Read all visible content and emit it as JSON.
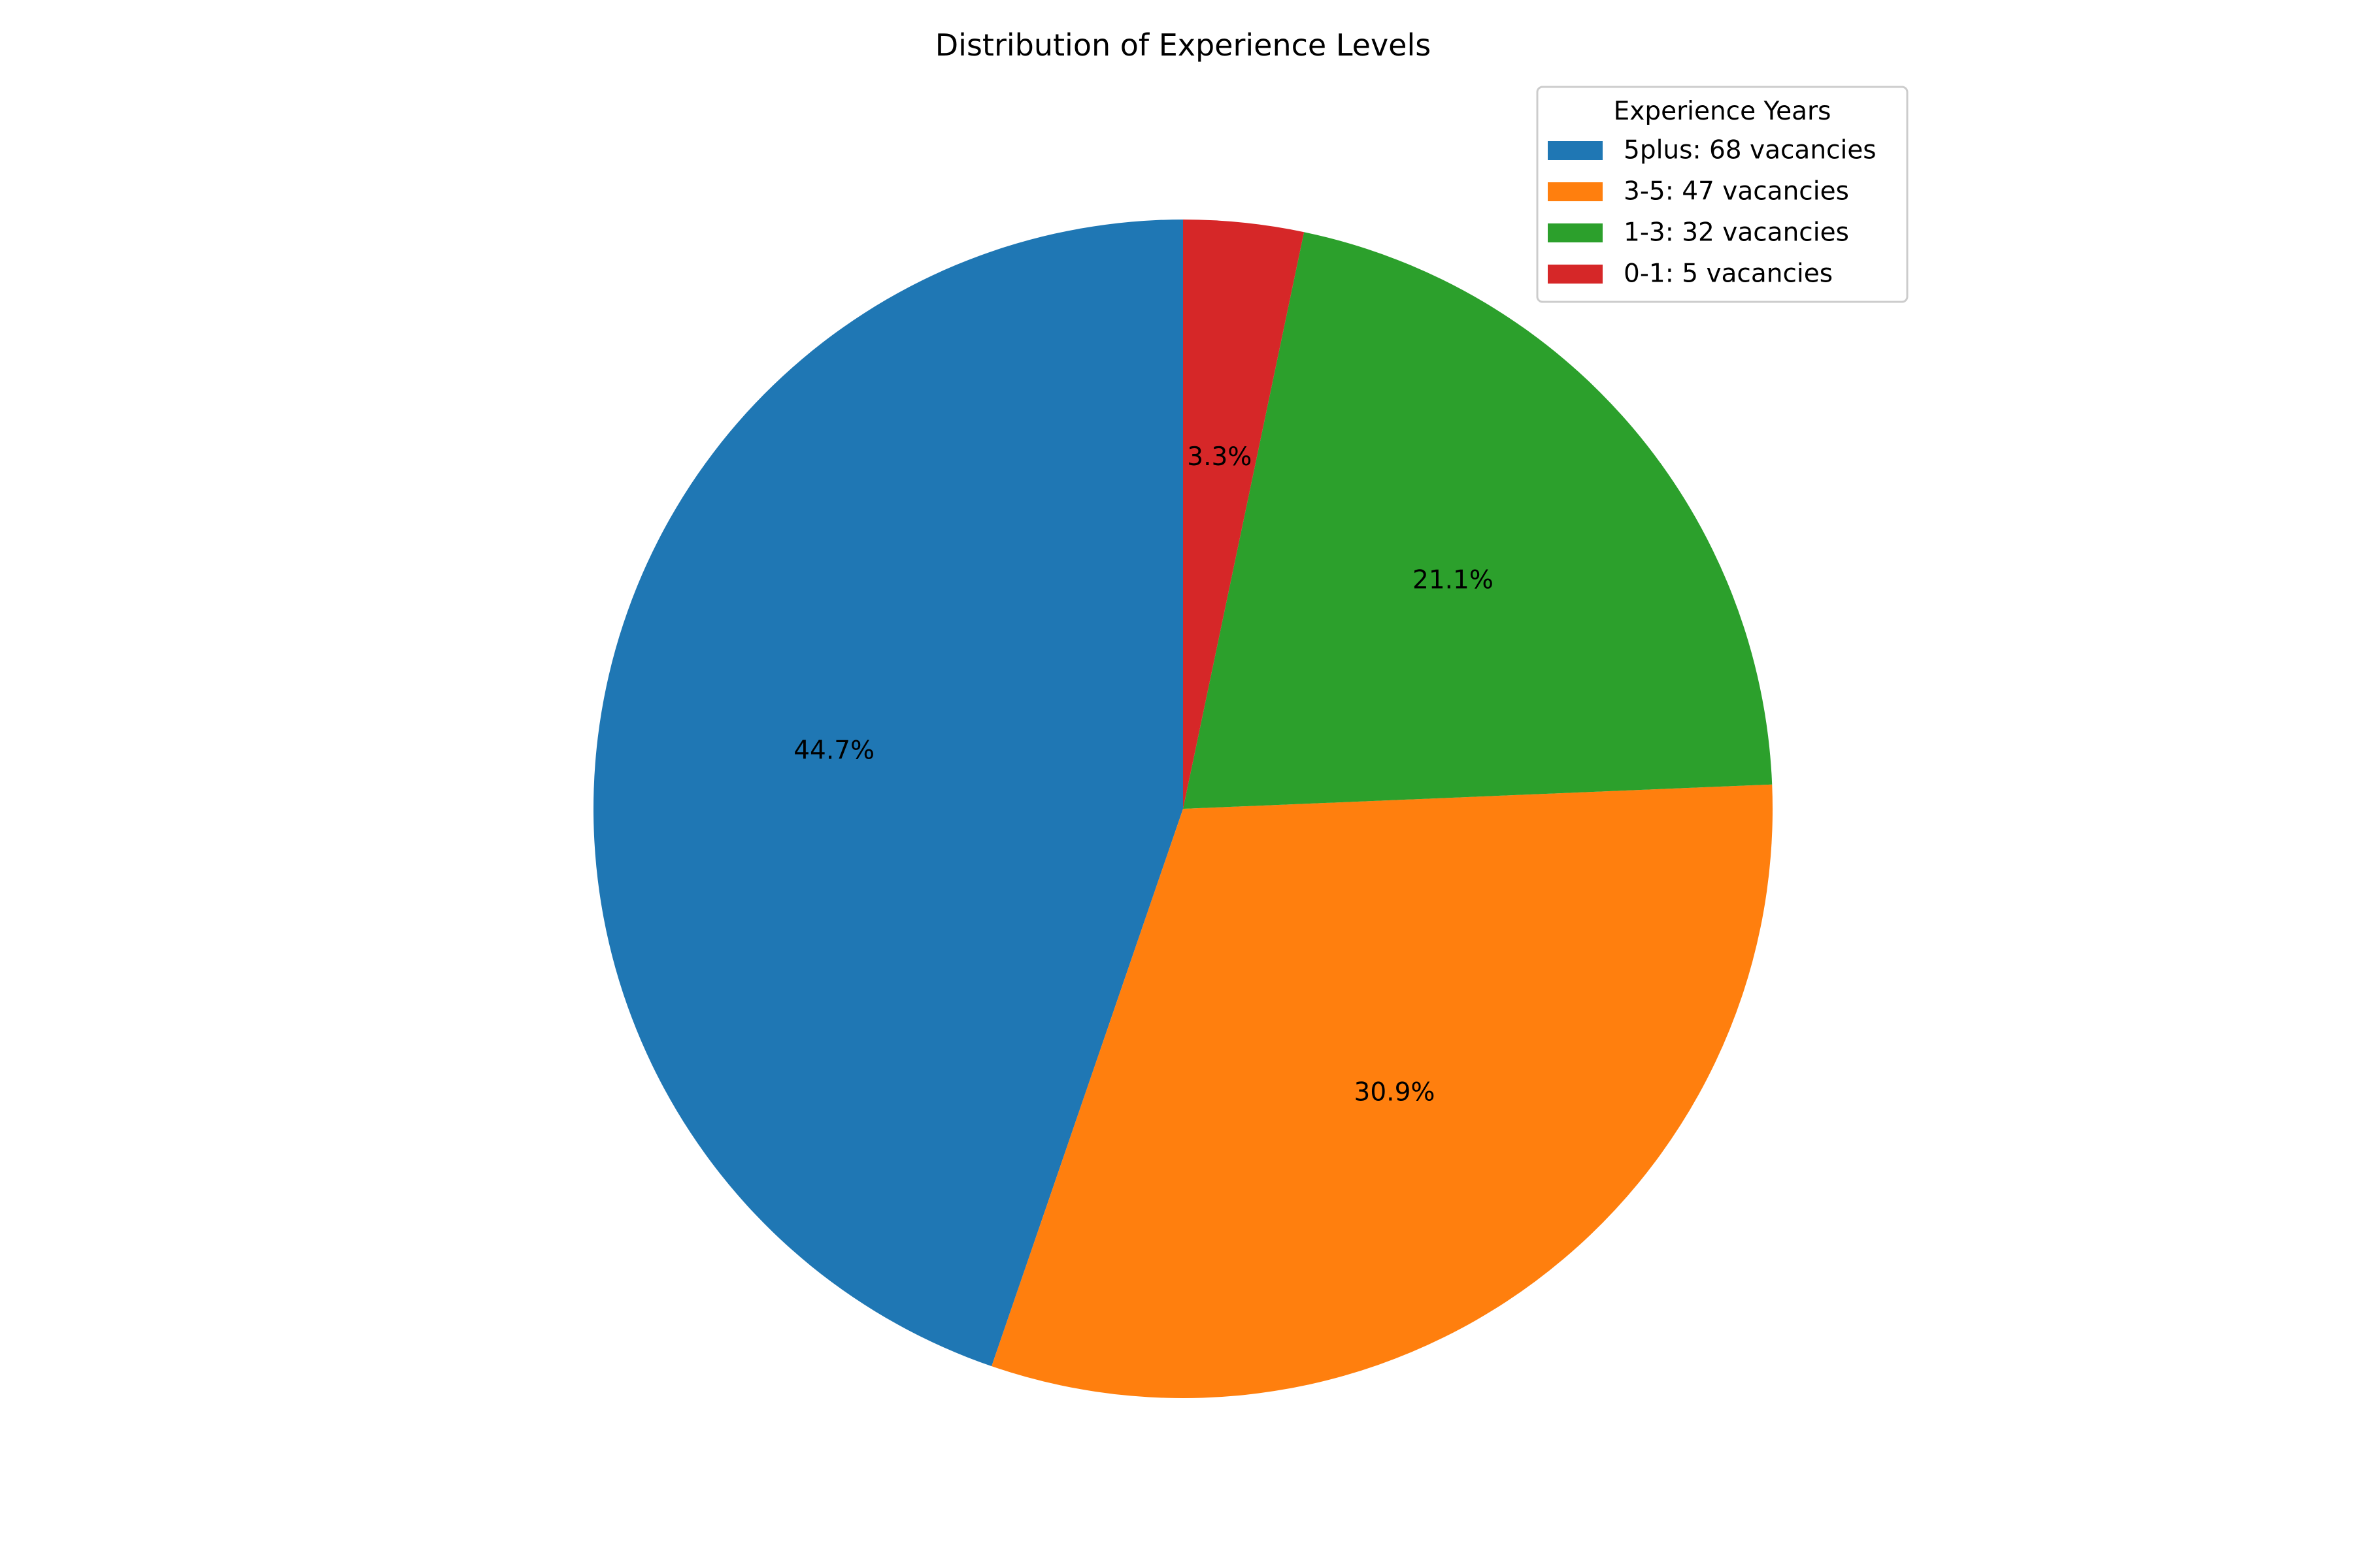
{
  "chart_data": {
    "type": "pie",
    "title": "Distribution of Experience Levels",
    "legend_title": "Experience Years",
    "legend_position": "top-right",
    "start_angle_deg": 90,
    "direction": "counterclockwise",
    "slices": [
      {
        "label": "5plus",
        "value": 68,
        "legend": "5plus: 68 vacancies",
        "pct_label": "44.7%",
        "color": "#1f77b4"
      },
      {
        "label": "3-5",
        "value": 47,
        "legend": "3-5: 47 vacancies",
        "pct_label": "30.9%",
        "color": "#ff7f0e"
      },
      {
        "label": "1-3",
        "value": 32,
        "legend": "1-3: 32 vacancies",
        "pct_label": "21.1%",
        "color": "#2ca02c"
      },
      {
        "label": "0-1",
        "value": 5,
        "legend": "0-1: 5 vacancies",
        "pct_label": "3.3%",
        "color": "#d62728"
      }
    ]
  }
}
